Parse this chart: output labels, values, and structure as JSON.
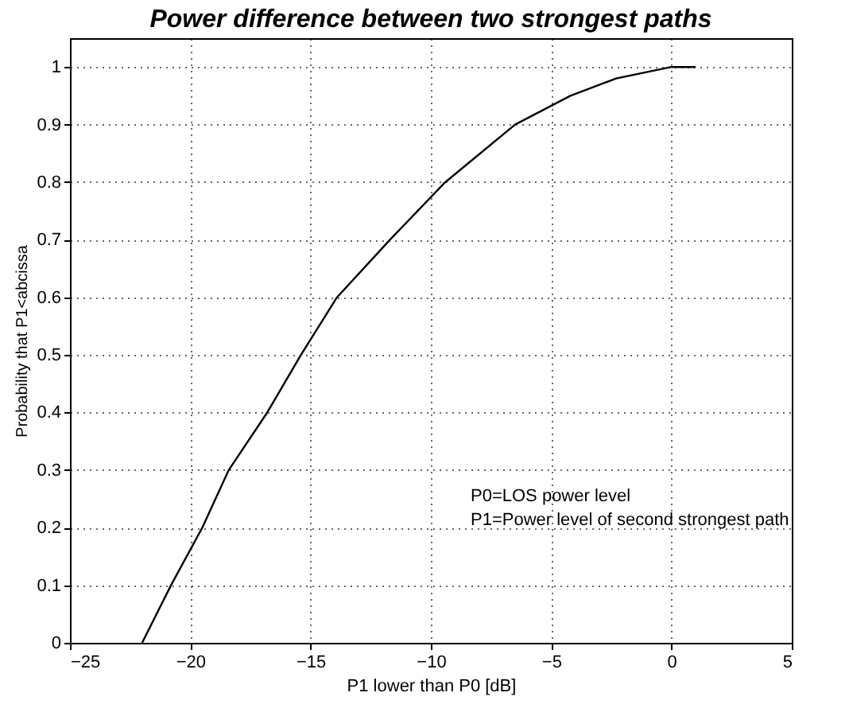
{
  "chart_data": {
    "type": "line",
    "title": "Power difference between two strongest paths",
    "xlabel": "P1 lower than P0 [dB]",
    "ylabel": "Probability that P1<abcissa",
    "x": [
      -22.0,
      -20.8,
      -19.5,
      -18.4,
      -16.8,
      -15.4,
      -13.9,
      -11.7,
      -9.4,
      -6.5,
      -4.2,
      -2.3,
      0,
      1
    ],
    "series": [
      {
        "color": "#000000",
        "values": [
          0,
          0.1,
          0.2,
          0.3,
          0.4,
          0.5,
          0.6,
          0.7,
          0.8,
          0.9,
          0.95,
          0.98,
          1,
          1
        ]
      }
    ],
    "xlim": [
      -25,
      5
    ],
    "xticks": [
      -25,
      -20,
      -15,
      -10,
      -5,
      0,
      5
    ],
    "ylim": [
      0,
      1.05
    ],
    "yticks": [
      0,
      0.1,
      0.2,
      0.3,
      0.4,
      0.5,
      0.6,
      0.7,
      0.8,
      0.9,
      1
    ],
    "grid": true,
    "line_style": "solid",
    "marker": "none",
    "annotations": [
      "P0=LOS power level",
      "P1=Power level of second strongest path"
    ]
  }
}
